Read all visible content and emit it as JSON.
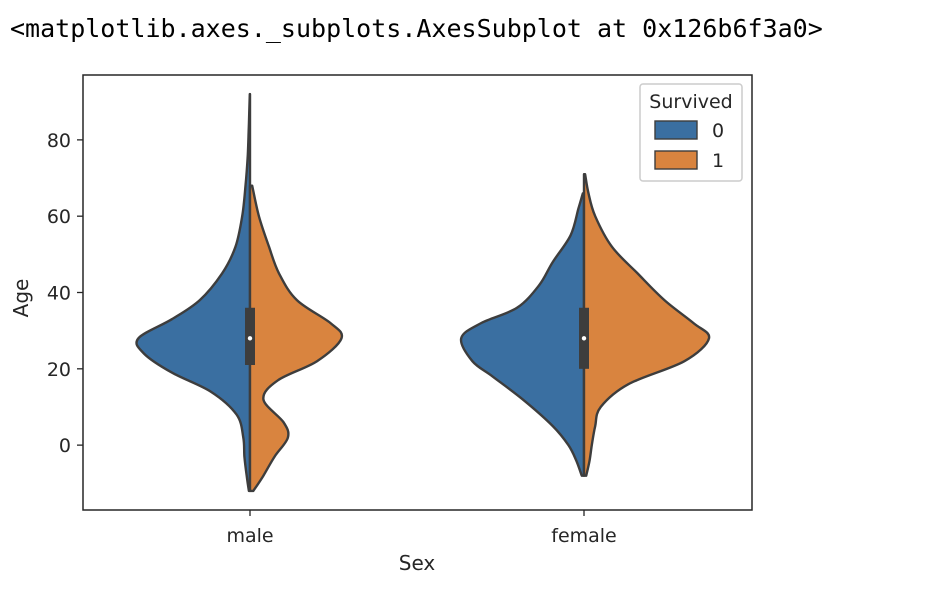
{
  "output_repr": "<matplotlib.axes._subplots.AxesSubplot at 0x126b6f3a0>",
  "chart_data": {
    "type": "violin",
    "split": true,
    "xlabel": "Sex",
    "ylabel": "Age",
    "categories": [
      "male",
      "female"
    ],
    "ylim": [
      -17,
      97
    ],
    "yticks": [
      0,
      20,
      40,
      60,
      80
    ],
    "grid": false,
    "legend": {
      "title": "Survived",
      "placement": "top-right",
      "entries": [
        {
          "label": "0",
          "color": "#3a6fa1"
        },
        {
          "label": "1",
          "color": "#d9843f"
        }
      ]
    },
    "hue_colors": [
      "#3a6fa1",
      "#d9843f"
    ],
    "violins": [
      {
        "category": "male",
        "quartiles": [
          21,
          28,
          36
        ],
        "median": 28,
        "halves": [
          {
            "hue": "0",
            "profile": [
              [
                -12,
                0.01
              ],
              [
                -8,
                0.03
              ],
              [
                -3,
                0.05
              ],
              [
                2,
                0.06
              ],
              [
                8,
                0.12
              ],
              [
                14,
                0.35
              ],
              [
                19,
                0.7
              ],
              [
                24,
                0.95
              ],
              [
                28,
                1.0
              ],
              [
                33,
                0.7
              ],
              [
                38,
                0.45
              ],
              [
                45,
                0.25
              ],
              [
                52,
                0.13
              ],
              [
                60,
                0.07
              ],
              [
                68,
                0.04
              ],
              [
                76,
                0.02
              ],
              [
                84,
                0.01
              ],
              [
                92,
                0.002
              ]
            ]
          },
          {
            "hue": "1",
            "profile": [
              [
                -12,
                0.03
              ],
              [
                -8,
                0.12
              ],
              [
                -3,
                0.22
              ],
              [
                2,
                0.34
              ],
              [
                6,
                0.3
              ],
              [
                12,
                0.12
              ],
              [
                17,
                0.25
              ],
              [
                22,
                0.6
              ],
              [
                28,
                0.82
              ],
              [
                32,
                0.72
              ],
              [
                38,
                0.42
              ],
              [
                45,
                0.26
              ],
              [
                52,
                0.17
              ],
              [
                60,
                0.08
              ],
              [
                68,
                0.02
              ]
            ]
          }
        ]
      },
      {
        "category": "female",
        "quartiles": [
          20,
          28,
          36
        ],
        "median": 28,
        "halves": [
          {
            "hue": "0",
            "profile": [
              [
                -8,
                0.02
              ],
              [
                -4,
                0.07
              ],
              [
                0,
                0.14
              ],
              [
                5,
                0.28
              ],
              [
                12,
                0.55
              ],
              [
                18,
                0.82
              ],
              [
                22,
                1.0
              ],
              [
                28,
                1.1
              ],
              [
                32,
                0.92
              ],
              [
                36,
                0.6
              ],
              [
                42,
                0.4
              ],
              [
                48,
                0.28
              ],
              [
                55,
                0.12
              ],
              [
                62,
                0.05
              ],
              [
                66,
                0.01
              ]
            ]
          },
          {
            "hue": "1",
            "profile": [
              [
                -8,
                0.02
              ],
              [
                -4,
                0.05
              ],
              [
                0,
                0.07
              ],
              [
                5,
                0.1
              ],
              [
                10,
                0.15
              ],
              [
                16,
                0.4
              ],
              [
                22,
                0.9
              ],
              [
                28,
                1.12
              ],
              [
                32,
                0.98
              ],
              [
                38,
                0.72
              ],
              [
                45,
                0.48
              ],
              [
                52,
                0.25
              ],
              [
                60,
                0.1
              ],
              [
                66,
                0.04
              ],
              [
                71,
                0.01
              ]
            ]
          }
        ]
      }
    ]
  }
}
